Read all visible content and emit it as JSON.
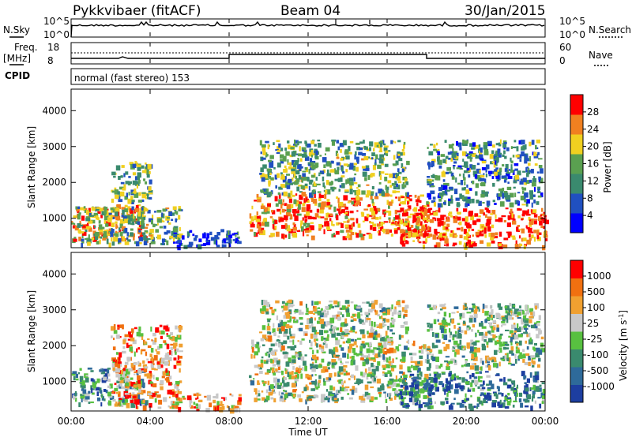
{
  "header": {
    "radar": "Pykkvibaer (fitACF)",
    "beam": "Beam 04",
    "date": "30/Jan/2015"
  },
  "top_panels": {
    "nsky_label": "N.Sky",
    "nsky_ticks": [
      "10^5",
      "10^0"
    ],
    "nsearch_label": "N.Search",
    "nsearch_ticks": [
      "10^5",
      "10^0"
    ],
    "freq_label": "Freq.",
    "freq_unit": "[MHz]",
    "freq_ticks": [
      "18",
      "8"
    ],
    "nave_label": "Nave",
    "nave_ticks": [
      "60",
      "0"
    ],
    "cpid_label": "CPID",
    "cpid_value": "normal (fast stereo) 153"
  },
  "chart_data": [
    {
      "type": "heatmap",
      "name": "power",
      "ylabel": "Slant Range [km]",
      "ylim": [
        180,
        4600
      ],
      "yticks": [
        "4000",
        "3000",
        "2000",
        "1000"
      ],
      "xlim": [
        0,
        24
      ],
      "colorbar_label": "Power [dB]",
      "colorbar_ticks": [
        "28",
        "24",
        "20",
        "16",
        "12",
        "8",
        "4"
      ],
      "colors": [
        "#0000ff",
        "#2050c0",
        "#3a8a6e",
        "#5aa050",
        "#f0d020",
        "#f08020",
        "#ff0000"
      ],
      "bands": [
        {
          "t0": 0.0,
          "t1": 3.8,
          "r0": 400,
          "r1": 1400,
          "level": 0.75
        },
        {
          "t0": 0.3,
          "t1": 5.5,
          "r0": 300,
          "r1": 1350,
          "level": 0.45
        },
        {
          "t0": 2.0,
          "t1": 4.0,
          "r0": 1500,
          "r1": 2600,
          "level": 0.45
        },
        {
          "t0": 5.0,
          "t1": 8.5,
          "r0": 250,
          "r1": 700,
          "level": 0.2
        },
        {
          "t0": 9.0,
          "t1": 18.0,
          "r0": 500,
          "r1": 1700,
          "level": 0.8
        },
        {
          "t0": 9.5,
          "t1": 17.0,
          "r0": 1700,
          "r1": 3200,
          "level": 0.45
        },
        {
          "t0": 16.5,
          "t1": 24.0,
          "r0": 250,
          "r1": 1300,
          "level": 0.85
        },
        {
          "t0": 18.0,
          "t1": 23.8,
          "r0": 1400,
          "r1": 3200,
          "level": 0.35
        }
      ]
    },
    {
      "type": "heatmap",
      "name": "velocity",
      "ylabel": "Slant Range [km]",
      "ylim": [
        180,
        4600
      ],
      "yticks": [
        "4000",
        "3000",
        "2000",
        "1000"
      ],
      "xlim": [
        0,
        24
      ],
      "xticks": [
        "00:00",
        "04:00",
        "08:00",
        "12:00",
        "16:00",
        "20:00",
        "00:00"
      ],
      "xlabel": "Time UT",
      "colorbar_label": "Velocity [m s",
      "colorbar_label_sup": "-1",
      "colorbar_label_end": "]",
      "colorbar_ticks": [
        "1000",
        "500",
        "100",
        "25",
        "-25",
        "-100",
        "-500",
        "-1000"
      ],
      "colors": [
        "#1d3ea0",
        "#2e6a9a",
        "#3a8a6e",
        "#58c040",
        "#c8c8c8",
        "#f0a030",
        "#f07010",
        "#ff0000"
      ],
      "bands": [
        {
          "t0": 0.0,
          "t1": 3.8,
          "r0": 400,
          "r1": 1400,
          "level": 0.35
        },
        {
          "t0": 2.0,
          "t1": 5.5,
          "r0": 300,
          "r1": 2600,
          "level": 0.7
        },
        {
          "t0": 5.0,
          "t1": 8.5,
          "r0": 250,
          "r1": 700,
          "level": 0.75
        },
        {
          "t0": 9.0,
          "t1": 18.0,
          "r0": 500,
          "r1": 2200,
          "level": 0.5
        },
        {
          "t0": 9.5,
          "t1": 17.0,
          "r0": 2200,
          "r1": 3300,
          "level": 0.5
        },
        {
          "t0": 16.5,
          "t1": 24.0,
          "r0": 300,
          "r1": 1300,
          "level": 0.25
        },
        {
          "t0": 18.0,
          "t1": 23.8,
          "r0": 1400,
          "r1": 3200,
          "level": 0.45
        }
      ]
    }
  ]
}
